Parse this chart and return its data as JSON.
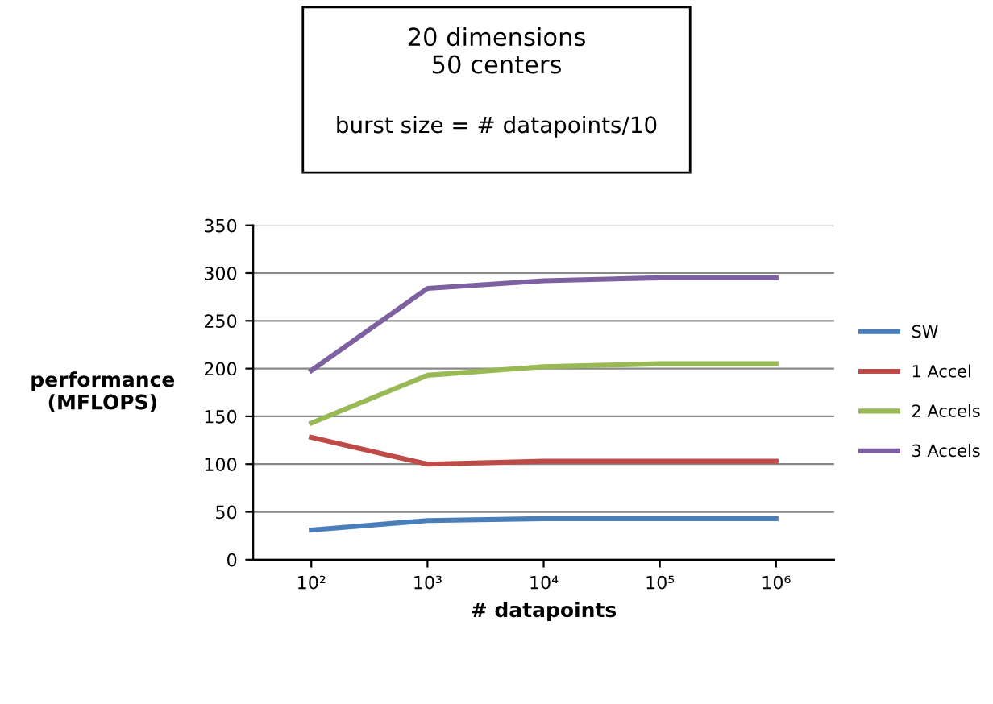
{
  "chart_data": {
    "type": "line",
    "title": "20 dimensions\n50 centers",
    "subtitle": "burst size = # datapoints/10",
    "xlabel": "# datapoints",
    "ylabel": "performance\n(MFLOPS)",
    "categories": [
      "10²",
      "10³",
      "10⁴",
      "10⁵",
      "10⁶"
    ],
    "series": [
      {
        "name": "SW",
        "color": "#4a7ebb",
        "values": [
          31,
          41,
          43,
          43,
          43
        ]
      },
      {
        "name": "1 Accel",
        "color": "#be4b48",
        "values": [
          128,
          100,
          103,
          103,
          103
        ]
      },
      {
        "name": "2 Accels",
        "color": "#98b954",
        "values": [
          143,
          193,
          202,
          205,
          205
        ]
      },
      {
        "name": "3 Accels",
        "color": "#7d60a0",
        "values": [
          198,
          284,
          292,
          295,
          295
        ]
      }
    ],
    "ylim": [
      0,
      350
    ],
    "yticks": [
      0,
      50,
      100,
      150,
      200,
      250,
      300,
      350
    ],
    "grid": "y",
    "legend": "right",
    "marker": "none",
    "line_style": "solid"
  }
}
